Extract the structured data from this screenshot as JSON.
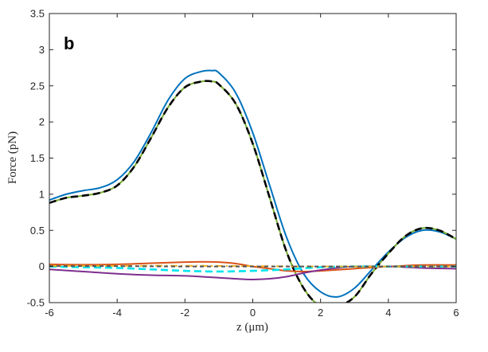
{
  "chart_data": {
    "type": "line",
    "panel_label": "b",
    "xlabel": "z (μm)",
    "ylabel": "Force (pN)",
    "xlim": [
      -6,
      6
    ],
    "ylim": [
      -0.5,
      3.5
    ],
    "xticks": [
      -6,
      -4,
      -2,
      0,
      2,
      4,
      6
    ],
    "yticks": [
      -0.5,
      0,
      0.5,
      1,
      1.5,
      2,
      2.5,
      3,
      3.5
    ],
    "xtick_labels": [
      "-6",
      "-4",
      "-2",
      "0",
      "2",
      "4",
      "6"
    ],
    "ytick_labels": [
      "-0.5",
      "0",
      "0.5",
      "1",
      "1.5",
      "2",
      "2.5",
      "3",
      "3.5"
    ],
    "grid": false,
    "series": [
      {
        "color": "#0072BD",
        "style": "solid",
        "x": [
          -6,
          -5.5,
          -5,
          -4.5,
          -4,
          -3.5,
          -3,
          -2.5,
          -2,
          -1.5,
          -1.2,
          -1,
          -0.5,
          0,
          0.5,
          1,
          1.5,
          2,
          2.5,
          3,
          3.5,
          4,
          4.5,
          5,
          5.5,
          6
        ],
        "y": [
          0.92,
          1.0,
          1.05,
          1.09,
          1.2,
          1.45,
          1.85,
          2.3,
          2.6,
          2.7,
          2.71,
          2.68,
          2.4,
          1.85,
          1.12,
          0.4,
          -0.1,
          -0.35,
          -0.42,
          -0.3,
          -0.05,
          0.2,
          0.4,
          0.5,
          0.48,
          0.38
        ]
      },
      {
        "color": "#77AC30",
        "style": "solid",
        "x": [
          -6,
          -5.5,
          -5,
          -4.5,
          -4,
          -3.5,
          -3,
          -2.5,
          -2,
          -1.5,
          -1.2,
          -1,
          -0.5,
          0,
          0.5,
          1,
          1.5,
          2,
          2.5,
          3,
          3.5,
          4,
          4.5,
          5,
          5.5,
          6
        ],
        "y": [
          0.88,
          0.95,
          0.98,
          1.02,
          1.12,
          1.38,
          1.78,
          2.2,
          2.48,
          2.56,
          2.56,
          2.52,
          2.25,
          1.7,
          0.95,
          0.2,
          -0.3,
          -0.55,
          -0.55,
          -0.42,
          -0.1,
          0.18,
          0.42,
          0.53,
          0.5,
          0.38
        ]
      },
      {
        "color": "#000000",
        "style": "dashed",
        "x": [
          -6,
          -5.5,
          -5,
          -4.5,
          -4,
          -3.5,
          -3,
          -2.5,
          -2,
          -1.5,
          -1.2,
          -1,
          -0.5,
          0,
          0.5,
          1,
          1.5,
          2,
          2.5,
          3,
          3.5,
          4,
          4.5,
          5,
          5.5,
          6
        ],
        "y": [
          0.88,
          0.95,
          0.98,
          1.02,
          1.12,
          1.38,
          1.78,
          2.2,
          2.48,
          2.56,
          2.56,
          2.52,
          2.25,
          1.7,
          0.95,
          0.2,
          -0.3,
          -0.55,
          -0.55,
          -0.42,
          -0.1,
          0.18,
          0.42,
          0.53,
          0.5,
          0.38
        ]
      },
      {
        "color": "#D95319",
        "style": "solid",
        "x": [
          -6,
          -5,
          -4,
          -3,
          -2,
          -1.5,
          -1,
          -0.5,
          0,
          0.5,
          1,
          1.5,
          2,
          3,
          4,
          5,
          6
        ],
        "y": [
          0.03,
          0.025,
          0.03,
          0.045,
          0.06,
          0.065,
          0.06,
          0.04,
          0.0,
          -0.03,
          -0.06,
          -0.07,
          -0.06,
          -0.03,
          0.0,
          0.02,
          0.02
        ]
      },
      {
        "color": "#7E2F8E",
        "style": "solid",
        "x": [
          -6,
          -5,
          -4,
          -3,
          -2,
          -1,
          -0.5,
          0,
          0.5,
          1,
          1.5,
          2,
          2.5,
          3,
          4,
          5,
          6
        ],
        "y": [
          -0.04,
          -0.07,
          -0.1,
          -0.12,
          -0.13,
          -0.155,
          -0.17,
          -0.18,
          -0.17,
          -0.14,
          -0.09,
          -0.05,
          -0.02,
          0.0,
          0.0,
          -0.02,
          -0.03
        ]
      },
      {
        "color": "#00E5EE",
        "style": "dashed",
        "x": [
          -6,
          -5,
          -4,
          -3,
          -2,
          -1,
          0,
          1,
          2,
          3,
          4,
          5,
          6
        ],
        "y": [
          0.0,
          -0.01,
          -0.02,
          -0.04,
          -0.06,
          -0.07,
          -0.06,
          -0.04,
          -0.01,
          0.0,
          0.0,
          0.0,
          0.0
        ]
      },
      {
        "color": "#EDB120",
        "style": "dashdot",
        "x": [
          -6,
          -4,
          -2,
          0,
          2,
          4,
          6
        ],
        "y": [
          0.01,
          0.01,
          0.01,
          0.005,
          0.0,
          0.0,
          0.0
        ]
      },
      {
        "color": "#555555",
        "style": "dashed",
        "x": [
          -6,
          -4,
          -2,
          0,
          2,
          4,
          6
        ],
        "y": [
          0.005,
          0.005,
          0.0,
          0.0,
          0.0,
          0.0,
          0.0
        ]
      }
    ]
  }
}
